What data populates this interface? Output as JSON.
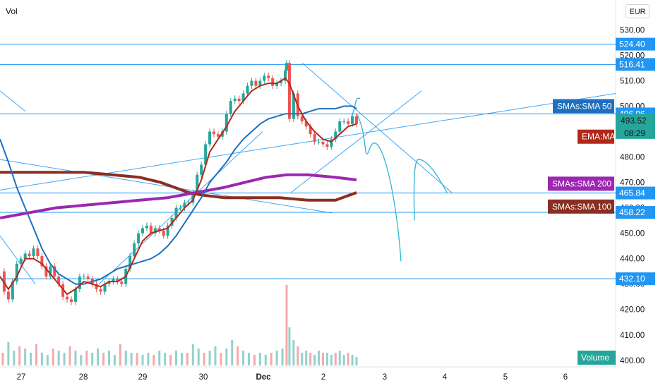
{
  "header": {
    "indicator_label": "Vol",
    "currency": "EUR"
  },
  "colors": {
    "up": "#26a69a",
    "down": "#ef5350",
    "hline": "#2196f3",
    "trend": "#2196f3",
    "ema": "#b22818",
    "sma50": "#1e6fbe",
    "sma100": "#8b2e22",
    "sma200": "#9c27b0",
    "axis_bg": "#ffffff",
    "grid": "#e8eaf0"
  },
  "chart_data": {
    "type": "candlestick",
    "ylim": [
      398,
      534
    ],
    "x_ticks": [
      "27",
      "28",
      "29",
      "30",
      "Dec",
      "2",
      "3",
      "4",
      "5",
      "6"
    ],
    "y_ticks": [
      "400.00",
      "410.00",
      "420.00",
      "430.00",
      "440.00",
      "450.00",
      "460.00",
      "470.00",
      "480.00",
      "490.00",
      "500.00",
      "510.00",
      "520.00",
      "530.00"
    ],
    "horizontal_levels": [
      {
        "value": 524.4,
        "label": "524.40"
      },
      {
        "value": 516.41,
        "label": "516.41"
      },
      {
        "value": 496.96,
        "label": "496.96"
      },
      {
        "value": 465.84,
        "label": "465.84"
      },
      {
        "value": 458.22,
        "label": "458.22"
      },
      {
        "value": 432.1,
        "label": "432.10"
      }
    ],
    "price_tags": [
      {
        "label": "SMAs:SMA 50",
        "value": 500.0,
        "color": "#1e6fbe"
      },
      {
        "label": "EMA:MA",
        "value": 488.0,
        "color": "#b22818"
      },
      {
        "label": "SMAs:SMA 200",
        "value": 469.5,
        "color": "#9c27b0"
      },
      {
        "label": "SMAs:SMA 100",
        "value": 460.5,
        "color": "#8b2e22"
      }
    ],
    "last_price": {
      "label": "493.52",
      "countdown": "08:29",
      "value": 493.52,
      "color": "#26a69a"
    },
    "volume_tag": "Volume",
    "price_series": [
      [
        0,
        435
      ],
      [
        3,
        427
      ],
      [
        6,
        424
      ],
      [
        9,
        431
      ],
      [
        12,
        438
      ],
      [
        15,
        440
      ],
      [
        18,
        442
      ],
      [
        21,
        441
      ],
      [
        24,
        444
      ],
      [
        27,
        441
      ],
      [
        30,
        437
      ],
      [
        33,
        433
      ],
      [
        36,
        437
      ],
      [
        39,
        433
      ],
      [
        42,
        430
      ],
      [
        45,
        425
      ],
      [
        48,
        424
      ],
      [
        51,
        423
      ],
      [
        54,
        428
      ],
      [
        57,
        433
      ],
      [
        60,
        433
      ],
      [
        63,
        432
      ],
      [
        66,
        430
      ],
      [
        69,
        428
      ],
      [
        72,
        427
      ],
      [
        75,
        430
      ],
      [
        78,
        431
      ],
      [
        81,
        432
      ],
      [
        84,
        431
      ],
      [
        87,
        430
      ],
      [
        90,
        436
      ],
      [
        93,
        441
      ],
      [
        96,
        446
      ],
      [
        99,
        450
      ],
      [
        102,
        452
      ],
      [
        105,
        453
      ],
      [
        108,
        450
      ],
      [
        111,
        452
      ],
      [
        114,
        451
      ],
      [
        117,
        449
      ],
      [
        120,
        453
      ],
      [
        123,
        456
      ],
      [
        126,
        460
      ],
      [
        129,
        460
      ],
      [
        132,
        462
      ],
      [
        135,
        462
      ],
      [
        138,
        466
      ],
      [
        141,
        473
      ],
      [
        144,
        477
      ],
      [
        147,
        485
      ],
      [
        150,
        490
      ],
      [
        153,
        489
      ],
      [
        156,
        488
      ],
      [
        159,
        490
      ],
      [
        162,
        497
      ],
      [
        165,
        502
      ],
      [
        168,
        503
      ],
      [
        171,
        502
      ],
      [
        174,
        505
      ],
      [
        177,
        508
      ],
      [
        180,
        510
      ],
      [
        183,
        508
      ],
      [
        186,
        510
      ],
      [
        189,
        512
      ],
      [
        192,
        511
      ],
      [
        195,
        508
      ],
      [
        198,
        509
      ],
      [
        201,
        510
      ],
      [
        204,
        514
      ],
      [
        205,
        517
      ],
      [
        207,
        495
      ],
      [
        210,
        505
      ],
      [
        213,
        496
      ],
      [
        216,
        494
      ],
      [
        219,
        492
      ],
      [
        222,
        489
      ],
      [
        225,
        486
      ],
      [
        228,
        486
      ],
      [
        231,
        485
      ],
      [
        234,
        484
      ],
      [
        237,
        487
      ],
      [
        240,
        490
      ],
      [
        243,
        494
      ],
      [
        246,
        494
      ],
      [
        249,
        493
      ],
      [
        252,
        496
      ],
      [
        255,
        493
      ]
    ],
    "ema_series": [
      [
        0,
        433
      ],
      [
        6,
        428
      ],
      [
        12,
        433
      ],
      [
        18,
        440
      ],
      [
        24,
        440
      ],
      [
        30,
        438
      ],
      [
        36,
        434
      ],
      [
        42,
        430
      ],
      [
        48,
        426
      ],
      [
        54,
        428
      ],
      [
        60,
        431
      ],
      [
        66,
        430
      ],
      [
        72,
        429
      ],
      [
        78,
        431
      ],
      [
        84,
        431
      ],
      [
        90,
        433
      ],
      [
        96,
        440
      ],
      [
        102,
        447
      ],
      [
        108,
        450
      ],
      [
        114,
        451
      ],
      [
        120,
        452
      ],
      [
        126,
        456
      ],
      [
        132,
        460
      ],
      [
        138,
        463
      ],
      [
        144,
        471
      ],
      [
        150,
        482
      ],
      [
        156,
        487
      ],
      [
        162,
        492
      ],
      [
        168,
        498
      ],
      [
        174,
        502
      ],
      [
        180,
        506
      ],
      [
        186,
        508
      ],
      [
        192,
        509
      ],
      [
        198,
        509
      ],
      [
        204,
        511
      ],
      [
        207,
        509
      ],
      [
        213,
        500
      ],
      [
        219,
        494
      ],
      [
        225,
        490
      ],
      [
        231,
        487
      ],
      [
        237,
        486
      ],
      [
        243,
        489
      ],
      [
        249,
        492
      ],
      [
        255,
        493
      ]
    ],
    "sma50_series": [
      [
        0,
        487
      ],
      [
        6,
        478
      ],
      [
        12,
        468
      ],
      [
        18,
        460
      ],
      [
        24,
        452
      ],
      [
        30,
        444
      ],
      [
        36,
        438
      ],
      [
        42,
        434
      ],
      [
        48,
        432
      ],
      [
        54,
        430
      ],
      [
        60,
        430
      ],
      [
        66,
        431
      ],
      [
        72,
        432
      ],
      [
        78,
        434
      ],
      [
        84,
        436
      ],
      [
        90,
        437
      ],
      [
        96,
        438
      ],
      [
        102,
        439
      ],
      [
        108,
        440
      ],
      [
        114,
        442
      ],
      [
        120,
        445
      ],
      [
        126,
        449
      ],
      [
        132,
        454
      ],
      [
        138,
        459
      ],
      [
        144,
        464
      ],
      [
        150,
        470
      ],
      [
        156,
        474
      ],
      [
        162,
        478
      ],
      [
        168,
        483
      ],
      [
        174,
        487
      ],
      [
        180,
        490
      ],
      [
        186,
        493
      ],
      [
        192,
        495
      ],
      [
        198,
        496
      ],
      [
        204,
        497
      ],
      [
        210,
        497
      ],
      [
        216,
        497
      ],
      [
        222,
        498
      ],
      [
        228,
        499
      ],
      [
        234,
        499
      ],
      [
        240,
        499
      ],
      [
        246,
        500
      ],
      [
        252,
        500
      ],
      [
        255,
        499
      ]
    ],
    "sma100_series": [
      [
        0,
        474
      ],
      [
        20,
        474
      ],
      [
        40,
        474
      ],
      [
        60,
        474
      ],
      [
        80,
        473
      ],
      [
        100,
        472
      ],
      [
        115,
        470
      ],
      [
        125,
        468
      ],
      [
        135,
        466
      ],
      [
        145,
        465
      ],
      [
        160,
        464
      ],
      [
        180,
        464
      ],
      [
        200,
        464
      ],
      [
        220,
        463
      ],
      [
        240,
        463
      ],
      [
        255,
        466
      ]
    ],
    "sma200_series": [
      [
        0,
        456
      ],
      [
        20,
        458
      ],
      [
        40,
        460
      ],
      [
        60,
        461
      ],
      [
        80,
        462
      ],
      [
        100,
        463
      ],
      [
        120,
        464
      ],
      [
        140,
        466
      ],
      [
        160,
        468
      ],
      [
        175,
        470
      ],
      [
        190,
        472
      ],
      [
        205,
        473
      ],
      [
        220,
        473
      ],
      [
        240,
        472
      ],
      [
        255,
        471
      ]
    ],
    "volume_series": [
      [
        2,
        6
      ],
      [
        6,
        11
      ],
      [
        10,
        7
      ],
      [
        14,
        9
      ],
      [
        18,
        8
      ],
      [
        22,
        6
      ],
      [
        26,
        10
      ],
      [
        30,
        6
      ],
      [
        34,
        5
      ],
      [
        38,
        8
      ],
      [
        42,
        7
      ],
      [
        46,
        6
      ],
      [
        50,
        9
      ],
      [
        54,
        7
      ],
      [
        58,
        5
      ],
      [
        62,
        7
      ],
      [
        66,
        6
      ],
      [
        70,
        8
      ],
      [
        74,
        6
      ],
      [
        78,
        7
      ],
      [
        82,
        5
      ],
      [
        86,
        10
      ],
      [
        90,
        7
      ],
      [
        94,
        6
      ],
      [
        98,
        6
      ],
      [
        102,
        5
      ],
      [
        106,
        6
      ],
      [
        110,
        5
      ],
      [
        114,
        7
      ],
      [
        118,
        6
      ],
      [
        122,
        5
      ],
      [
        126,
        7
      ],
      [
        130,
        6
      ],
      [
        134,
        6
      ],
      [
        138,
        10
      ],
      [
        142,
        8
      ],
      [
        146,
        6
      ],
      [
        150,
        7
      ],
      [
        154,
        9
      ],
      [
        158,
        6
      ],
      [
        162,
        8
      ],
      [
        166,
        12
      ],
      [
        170,
        9
      ],
      [
        174,
        7
      ],
      [
        178,
        6
      ],
      [
        182,
        5
      ],
      [
        186,
        6
      ],
      [
        190,
        5
      ],
      [
        194,
        6
      ],
      [
        198,
        7
      ],
      [
        202,
        8
      ],
      [
        205,
        38
      ],
      [
        207,
        18
      ],
      [
        210,
        12
      ],
      [
        213,
        9
      ],
      [
        216,
        6
      ],
      [
        219,
        7
      ],
      [
        222,
        6
      ],
      [
        225,
        5
      ],
      [
        228,
        7
      ],
      [
        231,
        6
      ],
      [
        234,
        6
      ],
      [
        237,
        5
      ],
      [
        240,
        6
      ],
      [
        243,
        7
      ],
      [
        246,
        5
      ],
      [
        249,
        6
      ],
      [
        252,
        5
      ],
      [
        255,
        4
      ]
    ]
  }
}
